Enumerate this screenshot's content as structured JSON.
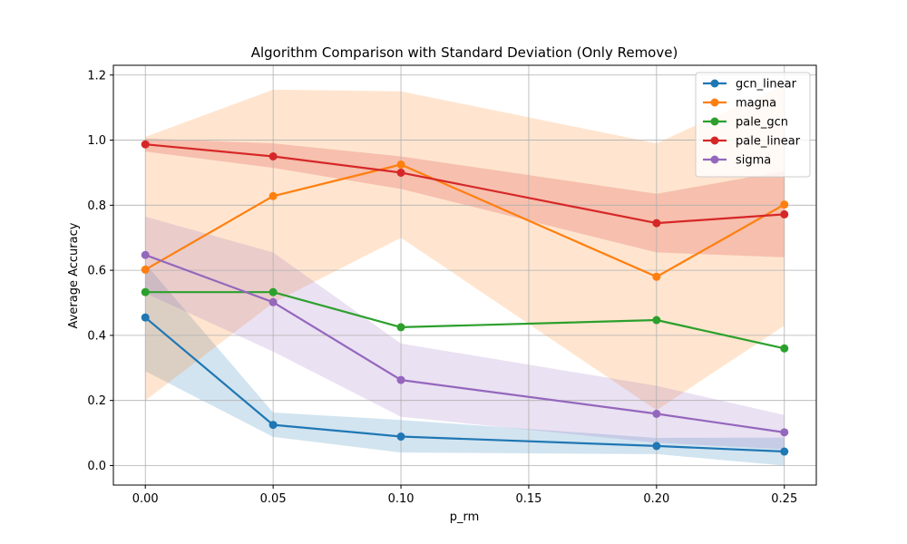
{
  "chart_data": {
    "type": "line",
    "title": "Algorithm Comparison with Standard Deviation (Only Remove)",
    "xlabel": "p_rm",
    "ylabel": "Average Accuracy",
    "x": [
      0.0,
      0.05,
      0.1,
      0.2,
      0.25
    ],
    "xlim": [
      -0.0125,
      0.2625
    ],
    "ylim": [
      -0.06,
      1.23
    ],
    "xticks": [
      "0.00",
      "0.05",
      "0.10",
      "0.15",
      "0.20",
      "0.25"
    ],
    "xtick_values": [
      0.0,
      0.05,
      0.1,
      0.15,
      0.2,
      0.25
    ],
    "yticks": [
      "0.0",
      "0.2",
      "0.4",
      "0.6",
      "0.8",
      "1.0",
      "1.2"
    ],
    "ytick_values": [
      0.0,
      0.2,
      0.4,
      0.6,
      0.8,
      1.0,
      1.2
    ],
    "grid": true,
    "legend_position": "top-right",
    "series": [
      {
        "name": "gcn_linear",
        "color": "#1f77b4",
        "values": [
          0.455,
          0.125,
          0.089,
          0.06,
          0.043
        ],
        "lower": [
          0.29,
          0.088,
          0.04,
          0.035,
          0.0
        ],
        "upper": [
          0.62,
          0.163,
          0.14,
          0.085,
          0.086
        ]
      },
      {
        "name": "magna",
        "color": "#ff7f0e",
        "values": [
          0.602,
          0.828,
          0.925,
          0.58,
          0.802
        ],
        "lower": [
          0.2,
          0.5,
          0.7,
          0.17,
          0.43
        ],
        "upper": [
          1.01,
          1.155,
          1.15,
          0.99,
          1.17
        ]
      },
      {
        "name": "pale_gcn",
        "color": "#2ca02c",
        "values": [
          0.533,
          0.533,
          0.425,
          0.447,
          0.36
        ]
      },
      {
        "name": "pale_linear",
        "color": "#d62728",
        "values": [
          0.987,
          0.95,
          0.9,
          0.745,
          0.772
        ],
        "lower": [
          0.965,
          0.915,
          0.85,
          0.655,
          0.64
        ],
        "upper": [
          1.005,
          0.99,
          0.95,
          0.835,
          0.905
        ]
      },
      {
        "name": "sigma",
        "color": "#9467bd",
        "values": [
          0.647,
          0.502,
          0.263,
          0.159,
          0.102
        ],
        "lower": [
          0.53,
          0.35,
          0.15,
          0.07,
          0.05
        ],
        "upper": [
          0.765,
          0.655,
          0.375,
          0.245,
          0.155
        ]
      }
    ]
  }
}
